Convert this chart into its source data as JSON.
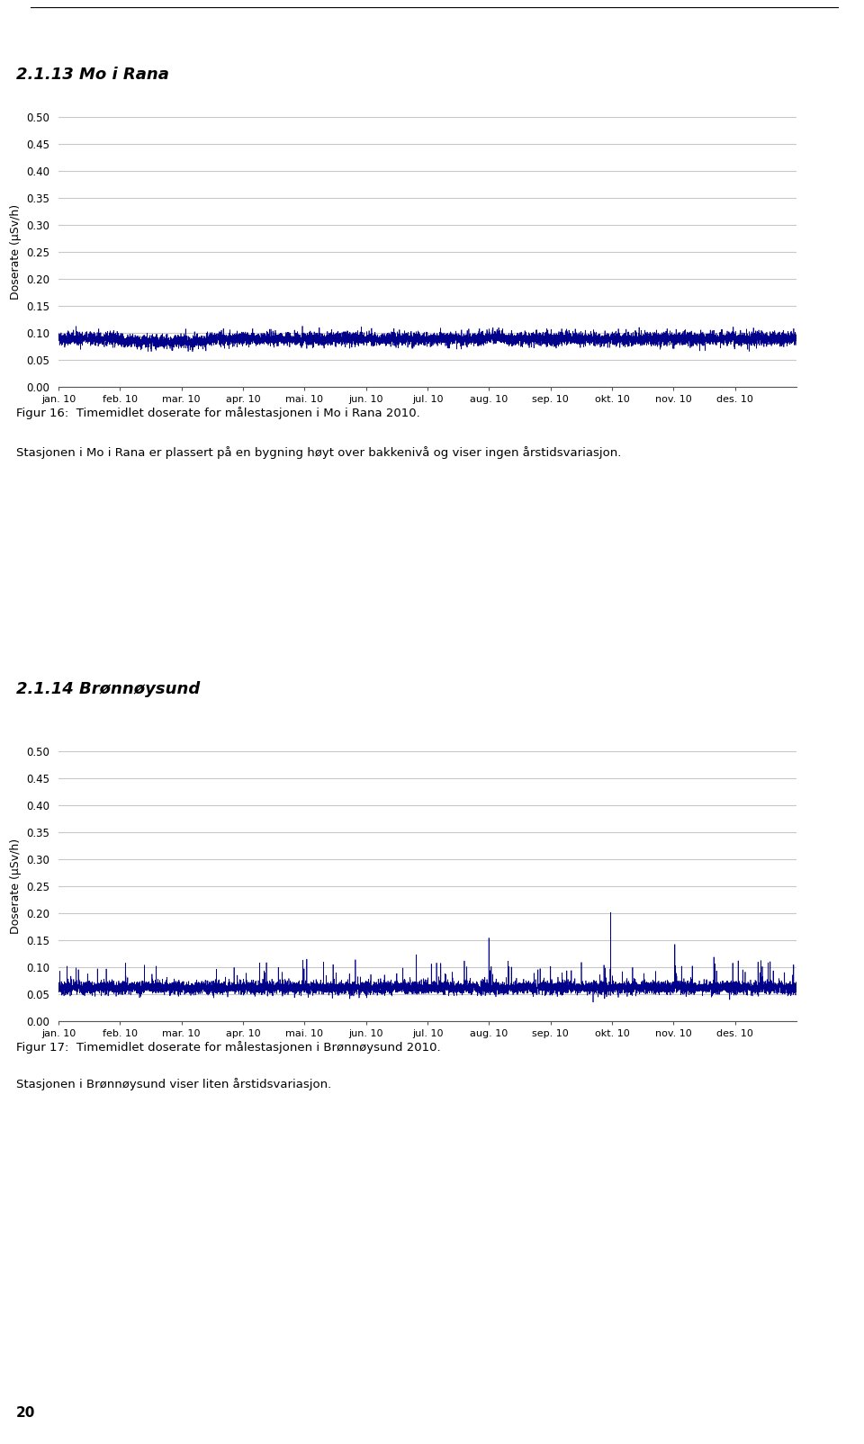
{
  "title1": "2.1.13 Mo i Rana",
  "title2": "2.1.14 Brønnøysund",
  "ylabel": "Doserate (μSv/h)",
  "ylim": [
    0.0,
    0.5
  ],
  "yticks": [
    0.0,
    0.05,
    0.1,
    0.15,
    0.2,
    0.25,
    0.3,
    0.35,
    0.4,
    0.45,
    0.5
  ],
  "xtick_labels": [
    "jan. 10",
    "feb. 10",
    "mar. 10",
    "apr. 10",
    "mai. 10",
    "jun. 10",
    "jul. 10",
    "aug. 10",
    "sep. 10",
    "okt. 10",
    "nov. 10",
    "des. 10"
  ],
  "line_color": "#00008B",
  "line_width": 0.5,
  "grid_color": "#C8C8C8",
  "background_color": "#FFFFFF",
  "fig_caption1": "Figur 16:  Timemidlet doserate for målestasjonen i Mo i Rana 2010.",
  "fig_caption2": "Stasjonen i Mo i Rana er plassert på en bygning høyt over bakkenivå og viser ingen årstidsvariasjon.",
  "fig_caption3": "Figur 17:  Timemidlet doserate for målestasjonen i Brønnøysund 2010.",
  "fig_caption4": "Stasjonen i Brønnøysund viser liten årstidsvariasjon.",
  "page_number": "20",
  "n_points": 8760,
  "mo_i_rana_base": 0.089,
  "mo_i_rana_noise": 0.006,
  "bronnoy_base": 0.062,
  "bronnoy_noise": 0.006
}
